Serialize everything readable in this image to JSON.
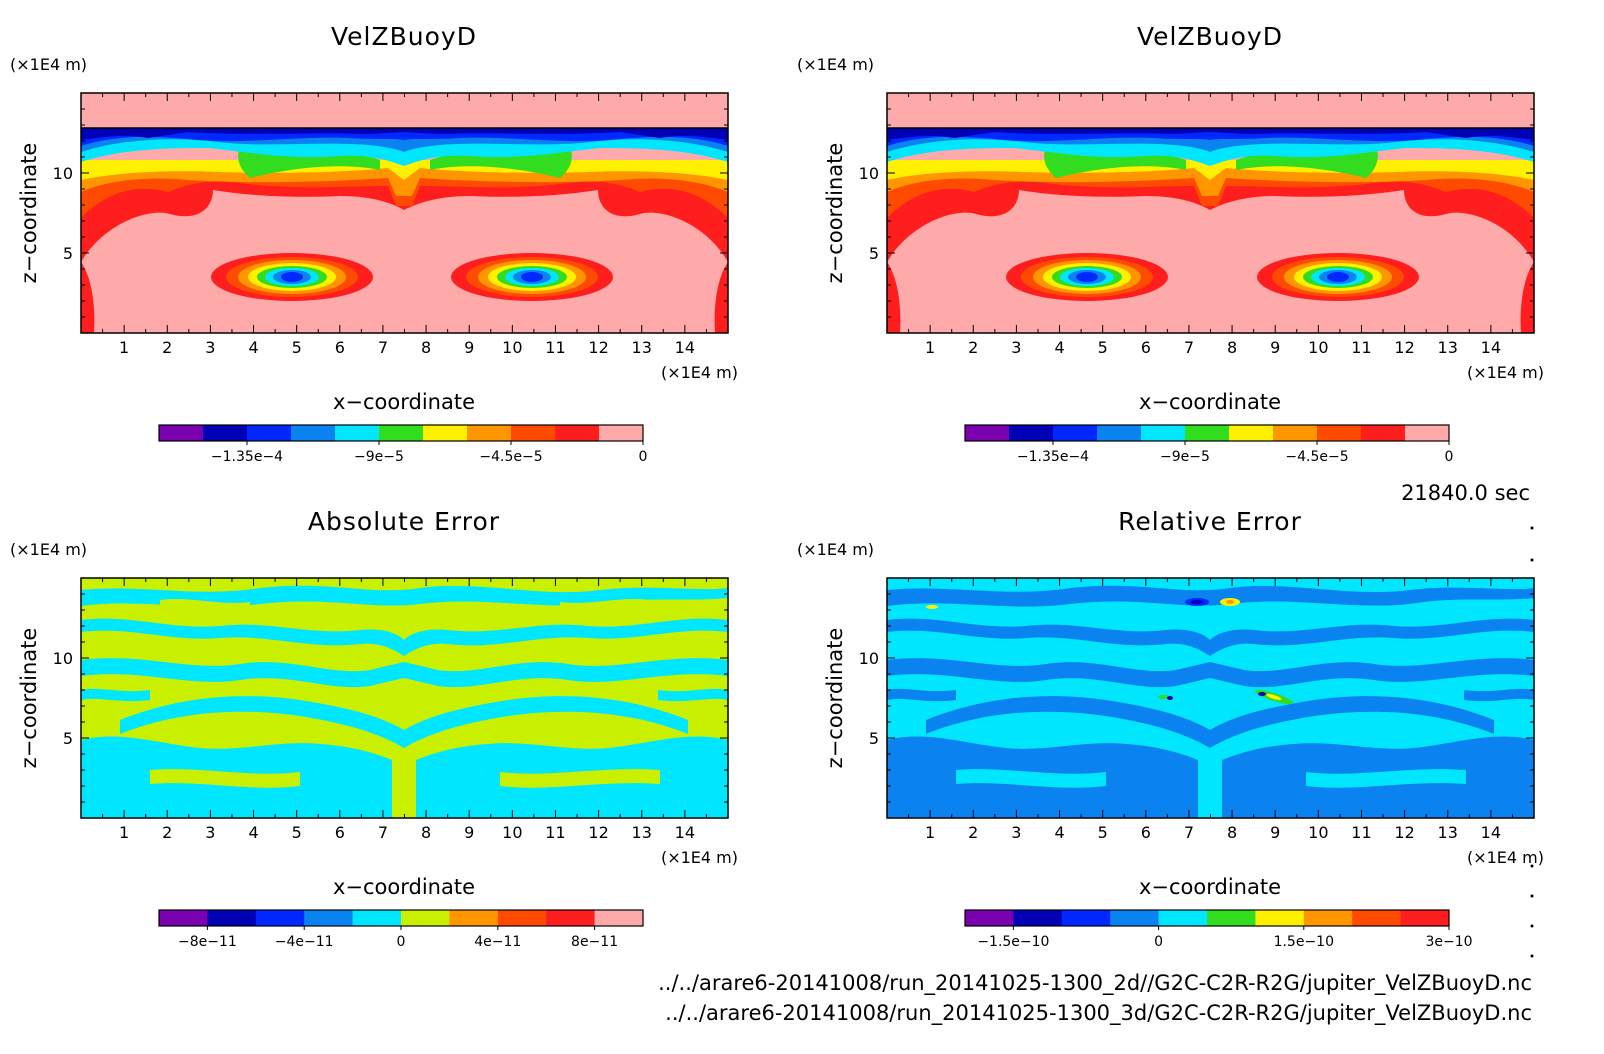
{
  "time_label": "21840.0 sec",
  "source_files": [
    "../../arare6-20141008/run_20141025-1300_2d//G2C-C2R-R2G/jupiter_VelZBuoyD.nc",
    "../../arare6-20141008/run_20141025-1300_3d/G2C-C2R-R2G/jupiter_VelZBuoyD.nc"
  ],
  "chart_data": [
    {
      "type": "heatmap",
      "title": "VelZBuoyD",
      "xlabel": "x−coordinate",
      "ylabel": "z−coordinate",
      "x_unit": "(×1E4 m)",
      "y_unit": "(×1E4 m)",
      "xlim": [
        0,
        15
      ],
      "ylim": [
        0,
        15
      ],
      "xticks": [
        "1",
        "2",
        "3",
        "4",
        "5",
        "6",
        "7",
        "8",
        "9",
        "10",
        "11",
        "12",
        "13",
        "14"
      ],
      "yticks": [
        "5",
        "10"
      ],
      "colorbar": {
        "colors": [
          "#7a00b0",
          "#0000b4",
          "#0028ff",
          "#0a82f0",
          "#00e6ff",
          "#32dc1e",
          "#fff000",
          "#ff9600",
          "#ff4b00",
          "#ff1e1e",
          "#ffaaaa"
        ],
        "tick_labels": [
          "−1.35e−4",
          "−9e−5",
          "−4.5e−5",
          "0"
        ],
        "tick_values": [
          -0.000135,
          -9e-05,
          -4.5e-05,
          0
        ],
        "range": [
          -0.000165,
          0
        ]
      }
    },
    {
      "type": "heatmap",
      "title": "VelZBuoyD",
      "xlabel": "x−coordinate",
      "ylabel": "z−coordinate",
      "x_unit": "(×1E4 m)",
      "y_unit": "(×1E4 m)",
      "xlim": [
        0,
        15
      ],
      "ylim": [
        0,
        15
      ],
      "xticks": [
        "1",
        "2",
        "3",
        "4",
        "5",
        "6",
        "7",
        "8",
        "9",
        "10",
        "11",
        "12",
        "13",
        "14"
      ],
      "yticks": [
        "5",
        "10"
      ],
      "colorbar": {
        "colors": [
          "#7a00b0",
          "#0000b4",
          "#0028ff",
          "#0a82f0",
          "#00e6ff",
          "#32dc1e",
          "#fff000",
          "#ff9600",
          "#ff4b00",
          "#ff1e1e",
          "#ffaaaa"
        ],
        "tick_labels": [
          "−1.35e−4",
          "−9e−5",
          "−4.5e−5",
          "0"
        ],
        "tick_values": [
          -0.000135,
          -9e-05,
          -4.5e-05,
          0
        ],
        "range": [
          -0.000165,
          0
        ]
      }
    },
    {
      "type": "heatmap",
      "title": "Absolute Error",
      "xlabel": "x−coordinate",
      "ylabel": "z−coordinate",
      "x_unit": "(×1E4 m)",
      "y_unit": "(×1E4 m)",
      "xlim": [
        0,
        15
      ],
      "ylim": [
        0,
        15
      ],
      "xticks": [
        "1",
        "2",
        "3",
        "4",
        "5",
        "6",
        "7",
        "8",
        "9",
        "10",
        "11",
        "12",
        "13",
        "14"
      ],
      "yticks": [
        "5",
        "10"
      ],
      "colorbar": {
        "colors": [
          "#7a00b0",
          "#0000b4",
          "#0028ff",
          "#0a82f0",
          "#00e6ff",
          "#c8f000",
          "#ff9600",
          "#ff4b00",
          "#ff1e1e",
          "#ffaaaa"
        ],
        "tick_labels": [
          "−8e−11",
          "−4e−11",
          "0",
          "4e−11",
          "8e−11"
        ],
        "tick_values": [
          -8e-11,
          -4e-11,
          0,
          4e-11,
          8e-11
        ],
        "range": [
          -1e-10,
          1e-10
        ]
      }
    },
    {
      "type": "heatmap",
      "title": "Relative Error",
      "xlabel": "x−coordinate",
      "ylabel": "z−coordinate",
      "x_unit": "(×1E4 m)",
      "y_unit": "(×1E4 m)",
      "xlim": [
        0,
        15
      ],
      "ylim": [
        0,
        15
      ],
      "xticks": [
        "1",
        "2",
        "3",
        "4",
        "5",
        "6",
        "7",
        "8",
        "9",
        "10",
        "11",
        "12",
        "13",
        "14"
      ],
      "yticks": [
        "5",
        "10"
      ],
      "colorbar": {
        "colors": [
          "#7a00b0",
          "#0000b4",
          "#0028ff",
          "#0a82f0",
          "#00e6ff",
          "#32dc1e",
          "#fff000",
          "#ff9600",
          "#ff4b00",
          "#ff1e1e"
        ],
        "tick_labels": [
          "−1.5e−10",
          "0",
          "1.5e−10",
          "3e−10"
        ],
        "tick_values": [
          -1.5e-10,
          0,
          1.5e-10,
          3e-10
        ],
        "range": [
          -2e-10,
          3e-10
        ]
      }
    }
  ]
}
